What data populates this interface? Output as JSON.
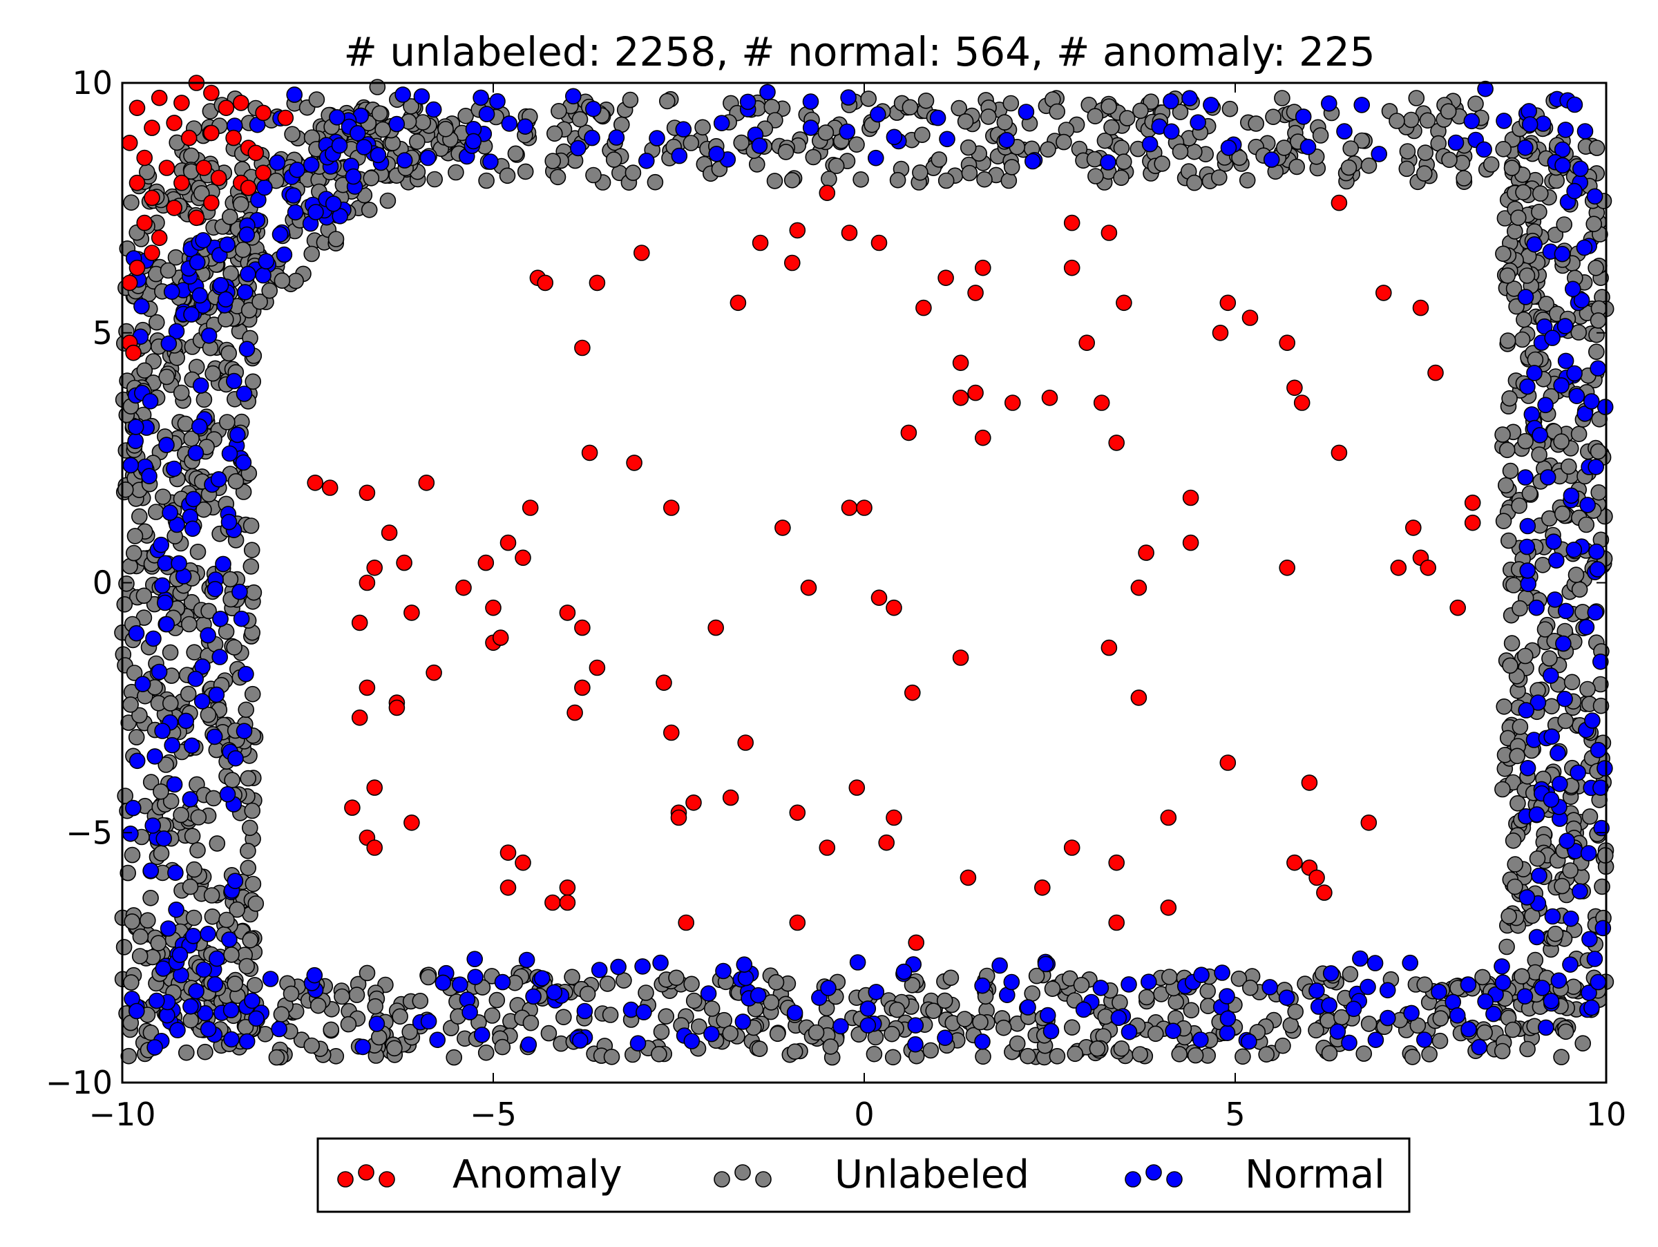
{
  "chart_data": {
    "type": "scatter",
    "title": "# unlabeled: 2258, # normal: 564, # anomaly: 225",
    "xlabel": "",
    "ylabel": "",
    "xlim": [
      -10,
      10
    ],
    "ylim": [
      -10,
      10
    ],
    "xticks": [
      -10,
      -5,
      0,
      5,
      10
    ],
    "yticks": [
      -10,
      -5,
      0,
      5,
      10
    ],
    "xtick_labels": [
      "−10",
      "−5",
      "0",
      "5",
      "10"
    ],
    "ytick_labels": [
      "−10",
      "−5",
      "0",
      "5",
      "10"
    ],
    "grid": false,
    "legend_position": "below plot, centered",
    "counts": {
      "unlabeled": 2258,
      "normal": 564,
      "anomaly": 225
    },
    "series": [
      {
        "name": "Anomaly",
        "color": "#ff0000",
        "points": [
          [
            -0.5,
            7.8
          ],
          [
            -0.2,
            7.0
          ],
          [
            0.2,
            6.8
          ],
          [
            -1.4,
            6.8
          ],
          [
            -0.9,
            7.05
          ],
          [
            -0.97,
            6.4
          ],
          [
            1.1,
            6.1
          ],
          [
            1.6,
            6.3
          ],
          [
            1.5,
            5.8
          ],
          [
            2.8,
            7.2
          ],
          [
            3.3,
            7.0
          ],
          [
            2.8,
            6.3
          ],
          [
            -1.7,
            5.6
          ],
          [
            0.8,
            5.5
          ],
          [
            3.5,
            5.6
          ],
          [
            3.0,
            4.8
          ],
          [
            4.9,
            5.6
          ],
          [
            5.2,
            5.3
          ],
          [
            5.7,
            4.8
          ],
          [
            4.8,
            5.0
          ],
          [
            7.0,
            5.8
          ],
          [
            7.5,
            5.5
          ],
          [
            7.7,
            4.2
          ],
          [
            6.4,
            7.6
          ],
          [
            -3.0,
            6.6
          ],
          [
            -3.6,
            6.0
          ],
          [
            -4.4,
            6.1
          ],
          [
            -3.8,
            4.7
          ],
          [
            -4.3,
            6.0
          ],
          [
            1.3,
            4.4
          ],
          [
            1.3,
            3.7
          ],
          [
            1.5,
            3.8
          ],
          [
            2.0,
            3.6
          ],
          [
            2.5,
            3.7
          ],
          [
            3.2,
            3.6
          ],
          [
            5.8,
            3.9
          ],
          [
            5.9,
            3.6
          ],
          [
            0.6,
            3.0
          ],
          [
            1.6,
            2.9
          ],
          [
            3.4,
            2.8
          ],
          [
            6.4,
            2.6
          ],
          [
            -7.4,
            2.0
          ],
          [
            -7.2,
            1.9
          ],
          [
            -6.7,
            1.8
          ],
          [
            -5.9,
            2.0
          ],
          [
            -3.7,
            2.6
          ],
          [
            -3.1,
            2.4
          ],
          [
            -2.6,
            1.5
          ],
          [
            -4.5,
            1.5
          ],
          [
            -0.2,
            1.5
          ],
          [
            0.0,
            1.5
          ],
          [
            -1.1,
            1.1
          ],
          [
            4.4,
            1.7
          ],
          [
            4.4,
            0.8
          ],
          [
            7.4,
            1.1
          ],
          [
            8.2,
            1.6
          ],
          [
            8.2,
            1.2
          ],
          [
            7.5,
            0.5
          ],
          [
            7.6,
            0.3
          ],
          [
            7.2,
            0.3
          ],
          [
            3.8,
            0.6
          ],
          [
            5.7,
            0.3
          ],
          [
            3.7,
            -0.1
          ],
          [
            8.0,
            -0.5
          ],
          [
            -6.4,
            1.0
          ],
          [
            -6.6,
            0.3
          ],
          [
            -6.7,
            0.0
          ],
          [
            -6.2,
            0.4
          ],
          [
            -4.8,
            0.8
          ],
          [
            -4.6,
            0.5
          ],
          [
            -5.1,
            0.4
          ],
          [
            -5.4,
            -0.1
          ],
          [
            -6.1,
            -0.6
          ],
          [
            -6.8,
            -0.8
          ],
          [
            -5.0,
            -0.5
          ],
          [
            -5.0,
            -1.2
          ],
          [
            -4.9,
            -1.1
          ],
          [
            -4.0,
            -0.6
          ],
          [
            -3.8,
            -0.9
          ],
          [
            -3.6,
            -1.7
          ],
          [
            -3.8,
            -2.1
          ],
          [
            -3.9,
            -2.6
          ],
          [
            -0.75,
            -0.1
          ],
          [
            0.2,
            -0.3
          ],
          [
            0.4,
            -0.5
          ],
          [
            -2.0,
            -0.9
          ],
          [
            -2.7,
            -2.0
          ],
          [
            0.65,
            -2.2
          ],
          [
            1.3,
            -1.5
          ],
          [
            3.3,
            -1.3
          ],
          [
            3.7,
            -2.3
          ],
          [
            -5.8,
            -1.8
          ],
          [
            -6.7,
            -2.1
          ],
          [
            -6.3,
            -2.4
          ],
          [
            -6.3,
            -2.5
          ],
          [
            -6.8,
            -2.7
          ],
          [
            -2.6,
            -3.0
          ],
          [
            -1.6,
            -3.2
          ],
          [
            -0.1,
            -4.1
          ],
          [
            -0.9,
            -4.6
          ],
          [
            -1.8,
            -4.3
          ],
          [
            -2.3,
            -4.4
          ],
          [
            -2.5,
            -4.6
          ],
          [
            -2.5,
            -4.7
          ],
          [
            0.4,
            -4.7
          ],
          [
            -6.6,
            -4.1
          ],
          [
            -6.9,
            -4.5
          ],
          [
            -6.1,
            -4.8
          ],
          [
            -6.7,
            -5.1
          ],
          [
            -6.6,
            -5.3
          ],
          [
            -4.8,
            -5.4
          ],
          [
            -4.6,
            -5.6
          ],
          [
            -4.8,
            -6.1
          ],
          [
            -4.2,
            -6.4
          ],
          [
            -4.0,
            -6.1
          ],
          [
            -4.0,
            -6.4
          ],
          [
            -2.4,
            -6.8
          ],
          [
            -0.9,
            -6.8
          ],
          [
            -0.5,
            -5.3
          ],
          [
            0.3,
            -5.2
          ],
          [
            1.4,
            -5.9
          ],
          [
            2.4,
            -6.1
          ],
          [
            2.8,
            -5.3
          ],
          [
            3.4,
            -5.6
          ],
          [
            4.1,
            -4.7
          ],
          [
            4.1,
            -6.5
          ],
          [
            3.4,
            -6.8
          ],
          [
            0.7,
            -7.2
          ],
          [
            4.9,
            -3.6
          ],
          [
            6.0,
            -4.0
          ],
          [
            6.8,
            -4.8
          ],
          [
            5.8,
            -5.6
          ],
          [
            6.0,
            -5.7
          ],
          [
            6.1,
            -5.9
          ],
          [
            6.2,
            -6.2
          ],
          [
            -9.8,
            9.5
          ],
          [
            -9.5,
            9.7
          ],
          [
            -9.2,
            9.6
          ],
          [
            -9.0,
            10.0
          ],
          [
            -8.8,
            9.8
          ],
          [
            -8.6,
            9.5
          ],
          [
            -8.4,
            9.6
          ],
          [
            -8.1,
            9.4
          ],
          [
            -7.8,
            9.3
          ],
          [
            -9.6,
            9.1
          ],
          [
            -9.3,
            9.2
          ],
          [
            -9.1,
            8.9
          ],
          [
            -8.8,
            9.0
          ],
          [
            -8.5,
            8.9
          ],
          [
            -8.3,
            8.7
          ],
          [
            -9.9,
            8.8
          ],
          [
            -9.7,
            8.5
          ],
          [
            -9.4,
            8.3
          ],
          [
            -9.2,
            8.0
          ],
          [
            -8.9,
            8.3
          ],
          [
            -8.7,
            8.1
          ],
          [
            -8.4,
            8.0
          ],
          [
            -8.2,
            8.6
          ],
          [
            -9.8,
            8.0
          ],
          [
            -9.6,
            7.7
          ],
          [
            -9.3,
            7.5
          ],
          [
            -9.0,
            7.3
          ],
          [
            -8.8,
            7.6
          ],
          [
            -9.7,
            7.2
          ],
          [
            -9.5,
            6.9
          ],
          [
            -9.6,
            6.6
          ],
          [
            -9.8,
            6.3
          ],
          [
            -9.9,
            6.0
          ],
          [
            -9.9,
            4.8
          ],
          [
            -9.85,
            4.6
          ],
          [
            -8.3,
            7.9
          ],
          [
            -8.1,
            8.2
          ]
        ]
      },
      {
        "name": "Unlabeled",
        "color": "#808080",
        "bands": {
          "top": {
            "y_min": 8.0,
            "y_max": 9.7,
            "x_min": -9.3,
            "x_max": 9.5,
            "count": 420
          },
          "bottom": {
            "y_min": -9.5,
            "y_max": -7.8,
            "x_min": -10,
            "x_max": 9.7,
            "count": 520
          },
          "left": {
            "x_min": -10,
            "x_max": -8.2,
            "y_min": -9.0,
            "y_max": 8.3,
            "count": 560
          },
          "right": {
            "x_min": 8.6,
            "x_max": 10,
            "y_min": -9.0,
            "y_max": 8.8,
            "count": 460
          },
          "top_left_diagonal": {
            "from": [
              -9.0,
              5.5
            ],
            "to": [
              -6.0,
              9.5
            ],
            "width": 1.6,
            "count": 160
          }
        }
      },
      {
        "name": "Normal",
        "color": "#0000ff",
        "bands": {
          "top": {
            "y_min": 8.4,
            "y_max": 9.9,
            "x_min": -8.5,
            "x_max": 9.2,
            "count": 80
          },
          "bottom": {
            "y_min": -9.3,
            "y_max": -7.5,
            "x_min": -10,
            "x_max": 9.3,
            "count": 150
          },
          "left": {
            "x_min": -9.9,
            "x_max": -8.3,
            "y_min": -9.0,
            "y_max": 6.5,
            "count": 130
          },
          "right": {
            "x_min": 8.9,
            "x_max": 10,
            "y_min": -9.0,
            "y_max": 9.7,
            "count": 120
          },
          "top_left_diagonal": {
            "from": [
              -9.0,
              6.0
            ],
            "to": [
              -6.5,
              8.8
            ],
            "width": 1.2,
            "count": 60
          }
        }
      }
    ]
  },
  "legend": {
    "items": [
      {
        "label": "Anomaly",
        "color": "#ff0000"
      },
      {
        "label": "Unlabeled",
        "color": "#808080"
      },
      {
        "label": "Normal",
        "color": "#0000ff"
      }
    ]
  }
}
